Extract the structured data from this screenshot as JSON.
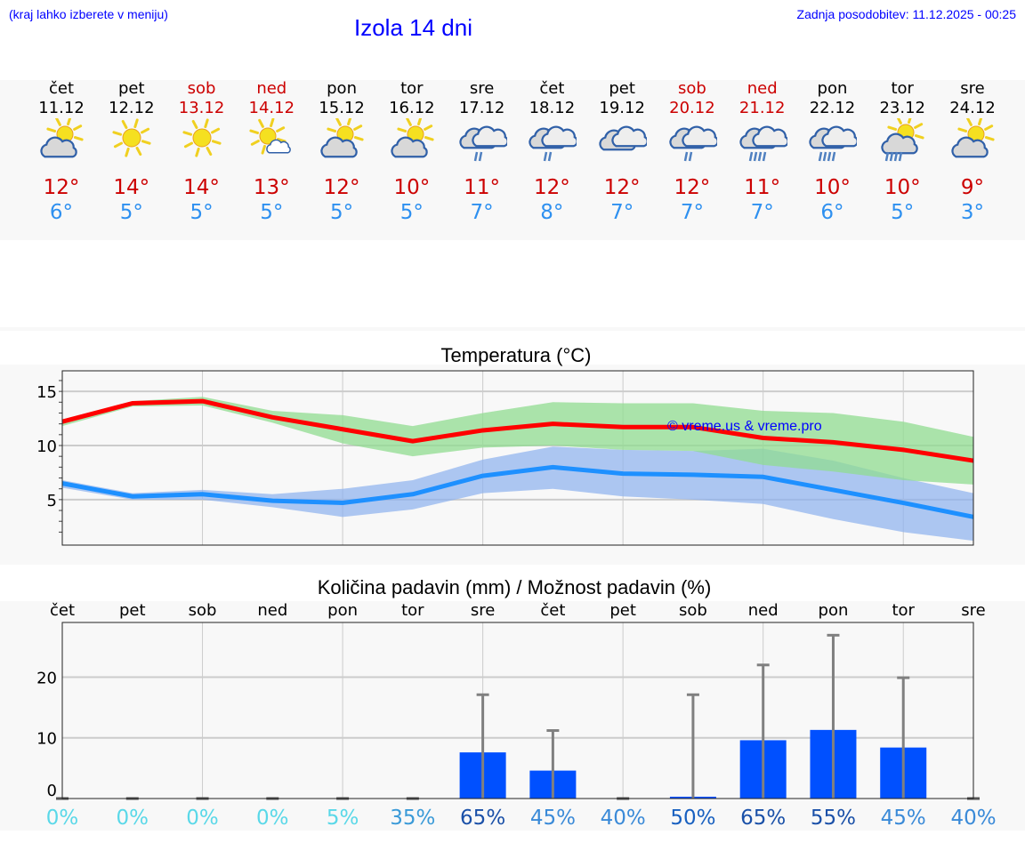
{
  "header": {
    "hint": "(kraj lahko izberete v meniju)",
    "title": "Izola 14 dni",
    "updated": "Zadnja posodobitev: 11.12.2025 - 00:25"
  },
  "days": [
    {
      "name": "čet",
      "date": "11.12",
      "hi": "12°",
      "lo": "6°",
      "icon": "partly-cloudy",
      "weekend": false
    },
    {
      "name": "pet",
      "date": "12.12",
      "hi": "14°",
      "lo": "5°",
      "icon": "sunny",
      "weekend": false
    },
    {
      "name": "sob",
      "date": "13.12",
      "hi": "14°",
      "lo": "5°",
      "icon": "sunny",
      "weekend": true
    },
    {
      "name": "ned",
      "date": "14.12",
      "hi": "13°",
      "lo": "5°",
      "icon": "sun-small-cloud",
      "weekend": true
    },
    {
      "name": "pon",
      "date": "15.12",
      "hi": "12°",
      "lo": "5°",
      "icon": "partly-cloudy",
      "weekend": false
    },
    {
      "name": "tor",
      "date": "16.12",
      "hi": "10°",
      "lo": "5°",
      "icon": "partly-cloudy",
      "weekend": false
    },
    {
      "name": "sre",
      "date": "17.12",
      "hi": "11°",
      "lo": "7°",
      "icon": "light-rain",
      "weekend": false
    },
    {
      "name": "čet",
      "date": "18.12",
      "hi": "12°",
      "lo": "8°",
      "icon": "light-rain",
      "weekend": false
    },
    {
      "name": "pet",
      "date": "19.12",
      "hi": "12°",
      "lo": "7°",
      "icon": "cloudy",
      "weekend": false
    },
    {
      "name": "sob",
      "date": "20.12",
      "hi": "12°",
      "lo": "7°",
      "icon": "light-rain",
      "weekend": true
    },
    {
      "name": "ned",
      "date": "21.12",
      "hi": "11°",
      "lo": "7°",
      "icon": "heavy-rain",
      "weekend": true
    },
    {
      "name": "pon",
      "date": "22.12",
      "hi": "10°",
      "lo": "6°",
      "icon": "heavy-rain",
      "weekend": false
    },
    {
      "name": "tor",
      "date": "23.12",
      "hi": "10°",
      "lo": "5°",
      "icon": "sun-rain",
      "weekend": false
    },
    {
      "name": "sre",
      "date": "24.12",
      "hi": "9°",
      "lo": "3°",
      "icon": "partly-cloudy",
      "weekend": false
    }
  ],
  "colors": {
    "max": "#ff0000",
    "min": "#1e90ff",
    "max_band": "#90dc90",
    "min_band": "#8cb0ee",
    "bar": "#0050ff",
    "err": "#808080"
  },
  "chart_data": [
    {
      "type": "line",
      "title": "Temperatura (°C)",
      "ylim": [
        0.8,
        16.9
      ],
      "yticks": [
        "5",
        "10",
        "15"
      ],
      "ytick_values": [
        5,
        10,
        15
      ],
      "watermark": "© vreme.us & vreme.pro",
      "series": [
        {
          "name": "max",
          "values": [
            12.2,
            13.9,
            14.1,
            12.6,
            11.5,
            10.4,
            11.4,
            12.0,
            11.7,
            11.7,
            10.7,
            10.3,
            9.6,
            8.6
          ],
          "upper": [
            12.4,
            14.1,
            14.5,
            13.2,
            12.8,
            11.8,
            13.0,
            14.0,
            13.9,
            13.9,
            13.2,
            13.0,
            12.2,
            10.8
          ],
          "lower": [
            11.8,
            13.6,
            13.7,
            12.1,
            10.2,
            9.0,
            9.8,
            10.0,
            9.6,
            9.5,
            8.2,
            7.6,
            6.8,
            6.4
          ]
        },
        {
          "name": "min",
          "values": [
            6.5,
            5.3,
            5.5,
            4.9,
            4.7,
            5.5,
            7.2,
            8.0,
            7.4,
            7.3,
            7.1,
            5.9,
            4.7,
            3.4
          ],
          "upper": [
            6.8,
            5.6,
            5.9,
            5.5,
            6.0,
            6.8,
            8.7,
            9.9,
            9.6,
            9.5,
            9.7,
            8.6,
            7.0,
            5.6
          ],
          "lower": [
            6.1,
            5.0,
            5.0,
            4.3,
            3.4,
            4.1,
            5.6,
            6.0,
            5.3,
            5.0,
            4.6,
            3.2,
            2.0,
            1.2
          ]
        }
      ]
    },
    {
      "type": "bar",
      "title": "Količina padavin (mm) / Možnost padavin (%)",
      "ylim": [
        0,
        29
      ],
      "yticks": [
        "0",
        "10",
        "20"
      ],
      "ytick_values": [
        0,
        10,
        20
      ],
      "categories": [
        "čet",
        "pet",
        "sob",
        "ned",
        "pon",
        "tor",
        "sre",
        "čet",
        "pet",
        "sob",
        "ned",
        "pon",
        "tor",
        "sre"
      ],
      "values": [
        0,
        0,
        0,
        0,
        0,
        0,
        7.6,
        4.6,
        0,
        0.3,
        9.6,
        11.3,
        8.4,
        0
      ],
      "max": [
        0,
        0,
        0,
        0,
        0,
        0,
        17.1,
        11.2,
        0,
        17.1,
        22,
        26.9,
        19.9,
        0
      ],
      "probability": [
        "0%",
        "0%",
        "0%",
        "0%",
        "5%",
        "35%",
        "65%",
        "45%",
        "40%",
        "50%",
        "65%",
        "55%",
        "45%",
        "40%"
      ],
      "probability_values": [
        0,
        0,
        0,
        0,
        5,
        35,
        65,
        45,
        40,
        50,
        65,
        55,
        45,
        40
      ]
    }
  ]
}
